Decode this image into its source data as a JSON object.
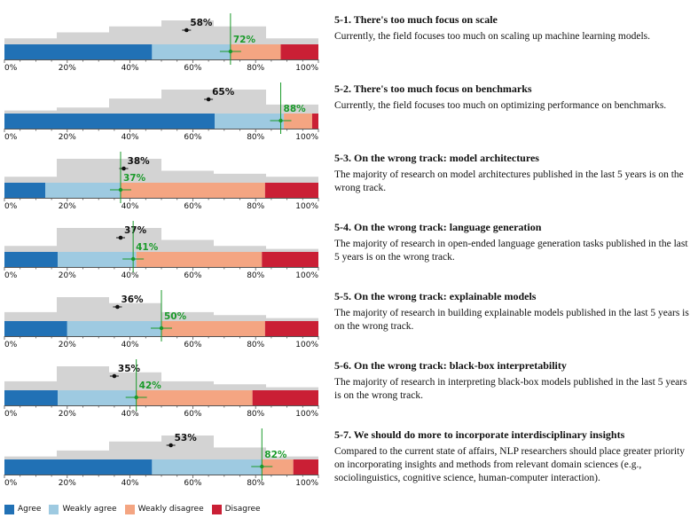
{
  "colors": {
    "agree": "#2171b5",
    "weakly_agree": "#9ecae1",
    "weakly_disagree": "#f4a582",
    "disagree": "#ca1f35",
    "prediction": "#d3d3d3",
    "community": "#111111",
    "actual": "#1a9a2a"
  },
  "chart_data": {
    "type": "bar",
    "x_ticks": [
      "0%",
      "20%",
      "40%",
      "60%",
      "80%",
      "100%"
    ],
    "xlim": [
      0,
      100
    ],
    "legend": [
      "Agree",
      "Weakly agree",
      "Weakly disagree",
      "Disagree"
    ],
    "legend_position": "bottom-left",
    "panels": [
      {
        "title": "5-1. There's too much focus on scale",
        "description": "Currently, the field focuses too much on scaling up machine learning models.",
        "segments": [
          47,
          25,
          16,
          12
        ],
        "predicted_label": "58%",
        "predicted": 58,
        "actual_label": "72%",
        "actual": 72,
        "histogram": [
          20,
          40,
          60,
          80,
          60,
          20
        ]
      },
      {
        "title": "5-2. There's too much focus on benchmarks",
        "description": "Currently, the field focuses too much on optimizing performance on benchmarks.",
        "segments": [
          67,
          22,
          9,
          2
        ],
        "predicted_label": "65%",
        "predicted": 65,
        "actual_label": "88%",
        "actual": 88,
        "histogram": [
          10,
          20,
          50,
          80,
          80,
          30
        ]
      },
      {
        "title": "5-3. On the wrong track: model architectures",
        "description": "The majority of research on model architectures published in the last 5 years is on the wrong track.",
        "segments": [
          13,
          24,
          46,
          17
        ],
        "predicted_label": "38%",
        "predicted": 38,
        "actual_label": "37%",
        "actual": 37,
        "histogram": [
          20,
          80,
          80,
          40,
          30,
          20
        ]
      },
      {
        "title": "5-4. On the wrong track: language generation",
        "description": "The majority of research in open-ended language generation tasks published in the last 5 years is on the wrong track.",
        "segments": [
          17,
          25,
          40,
          18
        ],
        "predicted_label": "37%",
        "predicted": 37,
        "actual_label": "41%",
        "actual": 41,
        "histogram": [
          20,
          80,
          80,
          40,
          20,
          10
        ]
      },
      {
        "title": "5-5. On the wrong track: explainable models",
        "description": "The majority of research in building explainable models published in the last 5 years is on the wrong track.",
        "segments": [
          20,
          30,
          33,
          17
        ],
        "predicted_label": "36%",
        "predicted": 36,
        "actual_label": "50%",
        "actual": 50,
        "histogram": [
          30,
          80,
          60,
          30,
          20,
          10
        ]
      },
      {
        "title": "5-6. On the wrong track: black-box interpretability",
        "description": "The majority of research in interpreting black-box models published in the last 5 years is on the wrong track.",
        "segments": [
          17,
          25,
          37,
          21
        ],
        "predicted_label": "35%",
        "predicted": 35,
        "actual_label": "42%",
        "actual": 42,
        "histogram": [
          30,
          80,
          60,
          30,
          20,
          10
        ]
      },
      {
        "title": "5-7. We should do more to incorporate interdisciplinary insights",
        "description": "Compared to the current state of affairs, NLP researchers should place greater priority on incorporating insights and methods from relevant domain sciences (e.g., sociolinguistics, cognitive science, human-computer interaction).",
        "segments": [
          47,
          35,
          10,
          8
        ],
        "predicted_label": "53%",
        "predicted": 53,
        "actual_label": "82%",
        "actual": 82,
        "histogram": [
          10,
          30,
          60,
          80,
          40,
          10
        ]
      }
    ]
  }
}
